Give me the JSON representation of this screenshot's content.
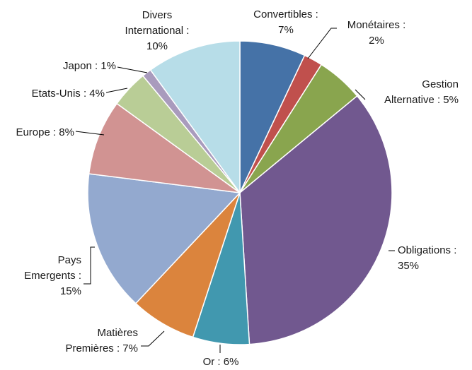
{
  "chart_data": {
    "type": "pie",
    "title": "",
    "slices": [
      {
        "label_lines": [
          "Convertibles :",
          "7%"
        ],
        "category": "Convertibles",
        "value": 7,
        "color": "#4572A7"
      },
      {
        "label_lines": [
          "Monétaires :",
          "2%"
        ],
        "category": "Monétaires",
        "value": 2,
        "color": "#C0504D"
      },
      {
        "label_lines": [
          "Gestion",
          "Alternative : 5%"
        ],
        "category": "Gestion Alternative",
        "value": 5,
        "color": "#89A54E"
      },
      {
        "label_lines": [
          "Obligations :",
          "35%"
        ],
        "category": "Obligations",
        "value": 35,
        "color": "#71588F"
      },
      {
        "label_lines": [
          "Or : 6%"
        ],
        "category": "Or",
        "value": 6,
        "color": "#4198AF"
      },
      {
        "label_lines": [
          "Matières",
          "Premières : 7%"
        ],
        "category": "Matières Premières",
        "value": 7,
        "color": "#DB843D"
      },
      {
        "label_lines": [
          "Pays",
          "Emergents :",
          "15%"
        ],
        "category": "Pays Emergents",
        "value": 15,
        "color": "#93A9CF"
      },
      {
        "label_lines": [
          "Europe : 8%"
        ],
        "category": "Europe",
        "value": 8,
        "color": "#D19392"
      },
      {
        "label_lines": [
          "Etats-Unis : 4%"
        ],
        "category": "Etats-Unis",
        "value": 4,
        "color": "#B9CD96"
      },
      {
        "label_lines": [
          "Japon : 1%"
        ],
        "category": "Japon",
        "value": 1,
        "color": "#A99BBD"
      },
      {
        "label_lines": [
          "Divers",
          "International :",
          "10%"
        ],
        "category": "Divers International",
        "value": 10,
        "color": "#B7DDE8"
      }
    ]
  }
}
